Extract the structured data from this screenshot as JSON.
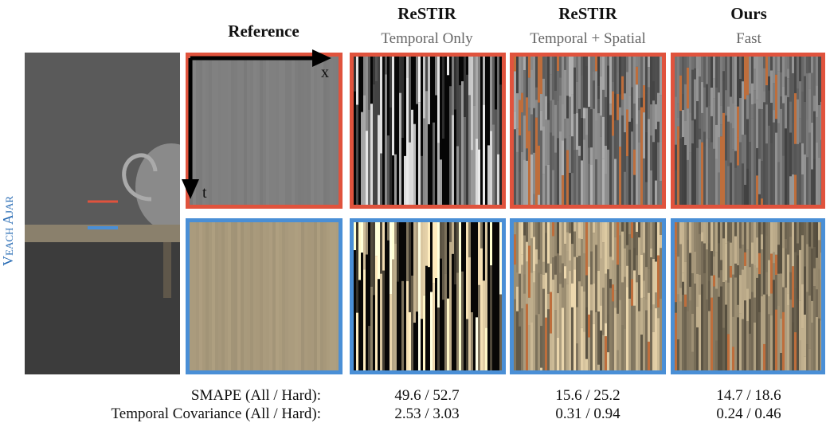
{
  "header": {
    "columns": [
      {
        "title": "Reference"
      },
      {
        "title": "ReSTIR",
        "subtitle": "Temporal Only"
      },
      {
        "title": "ReSTIR",
        "subtitle": "Temporal + Spatial"
      },
      {
        "title": "Ours",
        "subtitle": "Fast"
      }
    ]
  },
  "side_label": "Veach Ajar",
  "axes": {
    "x": "x",
    "t": "t"
  },
  "metrics": {
    "rows": [
      {
        "label": "SMAPE (All / Hard):",
        "values": [
          "49.6 / 52.7",
          "15.6 / 25.2",
          "14.7 / 18.6"
        ]
      },
      {
        "label": "Temporal Covariance (All / Hard):",
        "values": [
          "2.53 / 3.03",
          "0.31 / 0.94",
          "0.24 / 0.46"
        ]
      }
    ]
  }
}
